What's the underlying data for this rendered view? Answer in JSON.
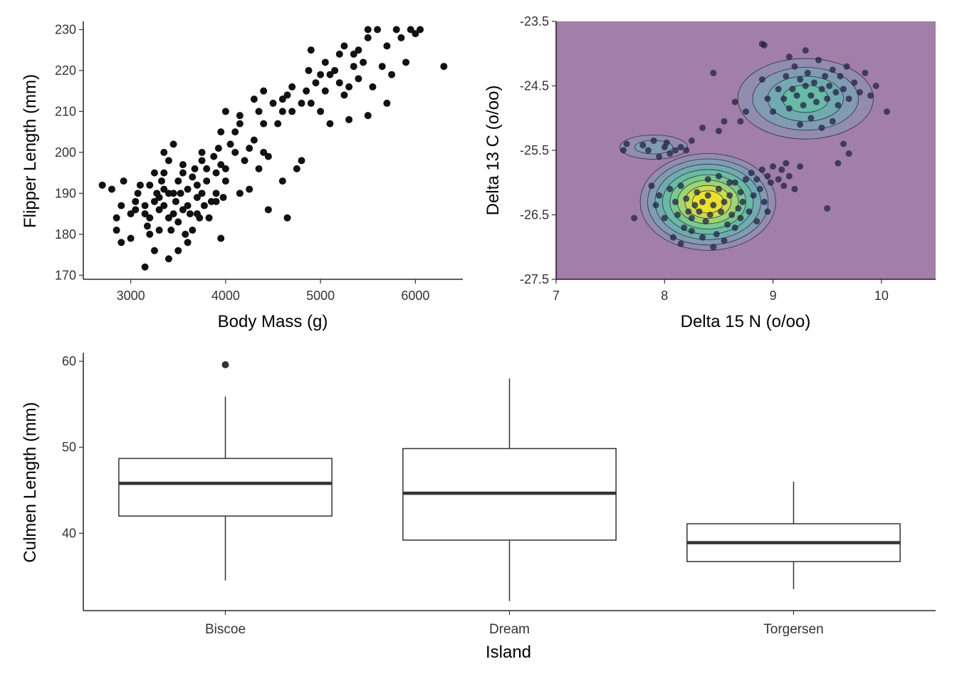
{
  "chart_data": [
    {
      "type": "scatter",
      "xlabel": "Body Mass (g)",
      "ylabel": "Flipper Length (mm)",
      "xlim": [
        2500,
        6500
      ],
      "ylim": [
        169,
        232
      ],
      "x_ticks": [
        3000,
        4000,
        5000,
        6000
      ],
      "y_ticks": [
        170,
        180,
        190,
        200,
        210,
        220,
        230
      ],
      "grid": false,
      "point_color": "#111111",
      "points": [
        [
          2700,
          192
        ],
        [
          2850,
          184
        ],
        [
          2850,
          181
        ],
        [
          2900,
          178
        ],
        [
          2900,
          187
        ],
        [
          2925,
          193
        ],
        [
          3000,
          185
        ],
        [
          3000,
          179
        ],
        [
          3050,
          188
        ],
        [
          3050,
          186
        ],
        [
          3075,
          190
        ],
        [
          3100,
          192
        ],
        [
          3150,
          172
        ],
        [
          3150,
          187
        ],
        [
          3175,
          182
        ],
        [
          3200,
          180
        ],
        [
          3200,
          184
        ],
        [
          3200,
          192
        ],
        [
          3250,
          188
        ],
        [
          3250,
          176
        ],
        [
          3250,
          195
        ],
        [
          3275,
          190
        ],
        [
          3300,
          186
        ],
        [
          3300,
          189
        ],
        [
          3300,
          181
        ],
        [
          3325,
          193
        ],
        [
          3350,
          195
        ],
        [
          3350,
          187
        ],
        [
          3350,
          191
        ],
        [
          3400,
          190
        ],
        [
          3400,
          184
        ],
        [
          3400,
          174
        ],
        [
          3400,
          198
        ],
        [
          3425,
          181
        ],
        [
          3450,
          185
        ],
        [
          3450,
          190
        ],
        [
          3450,
          202
        ],
        [
          3475,
          188
        ],
        [
          3500,
          183
        ],
        [
          3500,
          193
        ],
        [
          3500,
          176
        ],
        [
          3525,
          190
        ],
        [
          3550,
          186
        ],
        [
          3550,
          197
        ],
        [
          3575,
          180
        ],
        [
          3600,
          191
        ],
        [
          3600,
          187
        ],
        [
          3625,
          185
        ],
        [
          3650,
          194
        ],
        [
          3650,
          181
        ],
        [
          3675,
          196
        ],
        [
          3700,
          189
        ],
        [
          3700,
          192
        ],
        [
          3725,
          184
        ],
        [
          3750,
          190
        ],
        [
          3750,
          200
        ],
        [
          3775,
          187
        ],
        [
          3800,
          193
        ],
        [
          3800,
          196
        ],
        [
          3825,
          184
        ],
        [
          3850,
          188
        ],
        [
          3875,
          199
        ],
        [
          3900,
          190
        ],
        [
          3900,
          195
        ],
        [
          3925,
          201
        ],
        [
          3950,
          179
        ],
        [
          3950,
          197
        ],
        [
          3975,
          189
        ],
        [
          4000,
          196
        ],
        [
          4000,
          210
        ],
        [
          4000,
          193
        ],
        [
          4050,
          202
        ],
        [
          4100,
          200
        ],
        [
          4150,
          190
        ],
        [
          4150,
          207
        ],
        [
          4200,
          198
        ],
        [
          4250,
          191
        ],
        [
          4300,
          213
        ],
        [
          4300,
          203
        ],
        [
          4350,
          196
        ],
        [
          4350,
          210
        ],
        [
          4400,
          200
        ],
        [
          4400,
          215
        ],
        [
          4450,
          186
        ],
        [
          4450,
          199
        ],
        [
          4500,
          212
        ],
        [
          4550,
          207
        ],
        [
          4600,
          210
        ],
        [
          4600,
          193
        ],
        [
          4650,
          184
        ],
        [
          4650,
          214
        ],
        [
          4700,
          210
        ],
        [
          4700,
          216
        ],
        [
          4750,
          196
        ],
        [
          4800,
          212
        ],
        [
          4800,
          198
        ],
        [
          4850,
          215
        ],
        [
          4875,
          220
        ],
        [
          4900,
          212
        ],
        [
          4950,
          217
        ],
        [
          5000,
          219
        ],
        [
          5000,
          210
        ],
        [
          5050,
          222
        ],
        [
          5050,
          215
        ],
        [
          5100,
          207
        ],
        [
          5150,
          220
        ],
        [
          5200,
          217
        ],
        [
          5200,
          224
        ],
        [
          5250,
          214
        ],
        [
          5300,
          216
        ],
        [
          5300,
          208
        ],
        [
          5350,
          221
        ],
        [
          5400,
          225
        ],
        [
          5400,
          218
        ],
        [
          5450,
          222
        ],
        [
          5500,
          228
        ],
        [
          5500,
          209
        ],
        [
          5550,
          216
        ],
        [
          5600,
          230
        ],
        [
          5650,
          221
        ],
        [
          5700,
          226
        ],
        [
          5750,
          219
        ],
        [
          5800,
          230
        ],
        [
          5850,
          228
        ],
        [
          5900,
          222
        ],
        [
          5950,
          230
        ],
        [
          6000,
          229
        ],
        [
          6050,
          230
        ],
        [
          6300,
          221
        ],
        [
          2800,
          191
        ],
        [
          3600,
          178
        ],
        [
          3700,
          185
        ],
        [
          3900,
          188
        ],
        [
          4100,
          205
        ],
        [
          4250,
          201
        ],
        [
          4900,
          225
        ],
        [
          5250,
          226
        ],
        [
          5500,
          230
        ],
        [
          5700,
          212
        ],
        [
          3150,
          185
        ],
        [
          3350,
          200
        ],
        [
          3550,
          195
        ],
        [
          3750,
          198
        ],
        [
          3950,
          205
        ],
        [
          4150,
          209
        ],
        [
          4400,
          207
        ],
        [
          4600,
          213
        ],
        [
          5100,
          219
        ],
        [
          5350,
          224
        ]
      ]
    },
    {
      "type": "scatter",
      "subtype": "density-contour",
      "xlabel": "Delta 15 N (o/oo)",
      "ylabel": "Delta 13 C (o/oo)",
      "xlim": [
        7,
        10.5
      ],
      "ylim": [
        -27.5,
        -23.5
      ],
      "x_ticks": [
        7,
        8,
        9,
        10
      ],
      "y_ticks": [
        "-23.5",
        "-24.5",
        "-25.5",
        "-26.5",
        "-27.5"
      ],
      "y_tick_values": [
        -23.5,
        -24.5,
        -25.5,
        -26.5,
        -27.5
      ],
      "grid": false,
      "background_color": "#a17fa9",
      "fill_colors": [
        "#a17fa9",
        "#8e8eb2",
        "#7e9eb4",
        "#6eaeb0",
        "#67bca4",
        "#7ecb8e",
        "#a6d66d",
        "#d0dd4d",
        "#f0e22c"
      ],
      "point_color": "#232143",
      "contours": [
        {
          "center": [
            8.4,
            -26.3
          ],
          "rx": 0.5,
          "ry": 0.6
        },
        {
          "center": [
            9.3,
            -24.7
          ],
          "rx": 0.5,
          "ry": 0.5
        },
        {
          "center": [
            7.9,
            -25.45
          ],
          "rx": 0.25,
          "ry": 0.15
        }
      ],
      "points": [
        [
          7.62,
          -25.5
        ],
        [
          7.65,
          -25.4
        ],
        [
          7.72,
          -26.55
        ],
        [
          7.8,
          -25.42
        ],
        [
          7.85,
          -25.5
        ],
        [
          7.9,
          -25.35
        ],
        [
          7.95,
          -25.6
        ],
        [
          8.0,
          -25.45
        ],
        [
          8.02,
          -25.38
        ],
        [
          8.05,
          -25.55
        ],
        [
          8.1,
          -25.5
        ],
        [
          8.15,
          -25.45
        ],
        [
          8.2,
          -25.5
        ],
        [
          8.25,
          -25.35
        ],
        [
          7.88,
          -26.05
        ],
        [
          7.92,
          -26.35
        ],
        [
          7.95,
          -26.2
        ],
        [
          8.0,
          -26.55
        ],
        [
          8.05,
          -26.1
        ],
        [
          8.08,
          -26.85
        ],
        [
          8.1,
          -26.3
        ],
        [
          8.12,
          -26.5
        ],
        [
          8.15,
          -26.05
        ],
        [
          8.18,
          -26.7
        ],
        [
          8.2,
          -26.25
        ],
        [
          8.22,
          -26.45
        ],
        [
          8.25,
          -26.55
        ],
        [
          8.28,
          -26.35
        ],
        [
          8.3,
          -26.15
        ],
        [
          8.32,
          -26.45
        ],
        [
          8.35,
          -26.3
        ],
        [
          8.38,
          -26.6
        ],
        [
          8.4,
          -26.2
        ],
        [
          8.42,
          -26.5
        ],
        [
          8.45,
          -26.35
        ],
        [
          8.48,
          -26.8
        ],
        [
          8.5,
          -26.1
        ],
        [
          8.52,
          -26.45
        ],
        [
          8.55,
          -26.3
        ],
        [
          8.58,
          -26.65
        ],
        [
          8.6,
          -26.2
        ],
        [
          8.62,
          -26.5
        ],
        [
          8.65,
          -26.0
        ],
        [
          8.68,
          -26.4
        ],
        [
          8.7,
          -26.15
        ],
        [
          8.72,
          -26.3
        ],
        [
          8.75,
          -25.95
        ],
        [
          8.78,
          -26.45
        ],
        [
          8.8,
          -25.85
        ],
        [
          8.82,
          -26.2
        ],
        [
          8.85,
          -25.95
        ],
        [
          8.88,
          -26.1
        ],
        [
          8.9,
          -25.8
        ],
        [
          8.92,
          -26.3
        ],
        [
          8.95,
          -25.9
        ],
        [
          8.98,
          -26.0
        ],
        [
          9.0,
          -25.75
        ],
        [
          9.05,
          -25.95
        ],
        [
          9.08,
          -25.8
        ],
        [
          9.1,
          -26.05
        ],
        [
          9.12,
          -25.7
        ],
        [
          9.15,
          -25.9
        ],
        [
          8.35,
          -26.85
        ],
        [
          8.45,
          -27.0
        ],
        [
          8.55,
          -26.9
        ],
        [
          8.25,
          -26.75
        ],
        [
          8.15,
          -26.95
        ],
        [
          8.65,
          -26.7
        ],
        [
          8.7,
          -26.55
        ],
        [
          8.6,
          -26.0
        ],
        [
          8.5,
          -25.9
        ],
        [
          8.4,
          -25.95
        ],
        [
          9.05,
          -24.55
        ],
        [
          9.1,
          -24.7
        ],
        [
          9.12,
          -24.35
        ],
        [
          9.15,
          -24.85
        ],
        [
          9.18,
          -24.55
        ],
        [
          9.2,
          -24.2
        ],
        [
          9.22,
          -24.65
        ],
        [
          9.25,
          -24.4
        ],
        [
          9.28,
          -24.8
        ],
        [
          9.3,
          -24.5
        ],
        [
          9.32,
          -24.3
        ],
        [
          9.35,
          -24.65
        ],
        [
          9.38,
          -24.45
        ],
        [
          9.4,
          -24.75
        ],
        [
          9.42,
          -24.1
        ],
        [
          9.45,
          -24.55
        ],
        [
          9.48,
          -24.35
        ],
        [
          9.5,
          -24.7
        ],
        [
          9.52,
          -24.5
        ],
        [
          9.55,
          -24.25
        ],
        [
          9.58,
          -24.6
        ],
        [
          9.6,
          -24.8
        ],
        [
          9.62,
          -24.35
        ],
        [
          9.65,
          -24.55
        ],
        [
          9.68,
          -24.2
        ],
        [
          9.7,
          -24.7
        ],
        [
          9.75,
          -24.45
        ],
        [
          9.8,
          -24.6
        ],
        [
          9.85,
          -24.3
        ],
        [
          9.9,
          -24.65
        ],
        [
          9.95,
          -24.5
        ],
        [
          10.05,
          -24.9
        ],
        [
          9.25,
          -25.1
        ],
        [
          9.35,
          -25.0
        ],
        [
          9.45,
          -25.15
        ],
        [
          9.55,
          -25.05
        ],
        [
          9.15,
          -24.05
        ],
        [
          9.3,
          -23.95
        ],
        [
          8.9,
          -24.4
        ],
        [
          8.95,
          -24.7
        ],
        [
          9.0,
          -24.9
        ],
        [
          8.45,
          -24.3
        ],
        [
          8.9,
          -23.85
        ],
        [
          8.92,
          -23.87
        ],
        [
          8.65,
          -24.75
        ],
        [
          8.7,
          -25.05
        ],
        [
          8.75,
          -24.9
        ],
        [
          8.5,
          -25.2
        ],
        [
          8.55,
          -25.05
        ],
        [
          8.35,
          -25.15
        ],
        [
          9.65,
          -25.4
        ],
        [
          9.6,
          -25.7
        ],
        [
          9.7,
          -25.55
        ],
        [
          9.5,
          -26.4
        ],
        [
          9.2,
          -26.1
        ],
        [
          9.25,
          -25.75
        ],
        [
          8.85,
          -26.6
        ],
        [
          8.95,
          -26.45
        ]
      ]
    },
    {
      "type": "box",
      "xlabel": "Island",
      "ylabel": "Culmen Length (mm)",
      "ylim": [
        31,
        61
      ],
      "y_ticks": [
        40,
        50,
        60
      ],
      "grid": false,
      "categories": [
        "Biscoe",
        "Dream",
        "Torgersen"
      ],
      "boxes": [
        {
          "category": "Biscoe",
          "whisker_low": 34.5,
          "q1": 42.0,
          "median": 45.8,
          "q3": 48.7,
          "whisker_high": 55.9,
          "outliers": [
            59.6
          ]
        },
        {
          "category": "Dream",
          "whisker_low": 32.1,
          "q1": 39.2,
          "median": 44.65,
          "q3": 49.85,
          "whisker_high": 58.0,
          "outliers": []
        },
        {
          "category": "Torgersen",
          "whisker_low": 33.5,
          "q1": 36.7,
          "median": 38.9,
          "q3": 41.1,
          "whisker_high": 46.0,
          "outliers": []
        }
      ]
    }
  ]
}
